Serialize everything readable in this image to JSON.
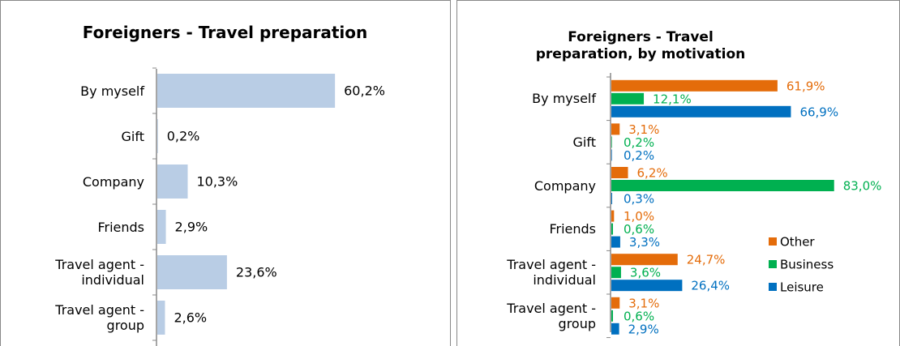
{
  "chart_data": [
    {
      "type": "bar",
      "orientation": "horizontal",
      "title": "Foreigners - Travel preparation",
      "categories": [
        "By myself",
        "Gift",
        "Company",
        "Friends",
        "Travel agent - individual",
        "Travel agent - group"
      ],
      "values": [
        60.2,
        0.2,
        10.3,
        2.9,
        23.6,
        2.6
      ],
      "value_labels": [
        "60,2%",
        "0,2%",
        "10,3%",
        "2,9%",
        "23,6%",
        "2,6%"
      ],
      "color": "#b9cde5"
    },
    {
      "type": "bar",
      "orientation": "horizontal",
      "title": "Foreigners - Travel preparation, by motivation",
      "categories": [
        "By myself",
        "Gift",
        "Company",
        "Friends",
        "Travel agent - individual",
        "Travel agent - group"
      ],
      "series": [
        {
          "name": "Other",
          "color": "#e46c0a",
          "values": [
            61.9,
            3.1,
            6.2,
            1.0,
            24.7,
            3.1
          ],
          "value_labels": [
            "61,9%",
            "3,1%",
            "6,2%",
            "1,0%",
            "24,7%",
            "3,1%"
          ]
        },
        {
          "name": "Business",
          "color": "#00b050",
          "values": [
            12.1,
            0.2,
            83.0,
            0.6,
            3.6,
            0.6
          ],
          "value_labels": [
            "12,1%",
            "0,2%",
            "83,0%",
            "0,6%",
            "3,6%",
            "0,6%"
          ]
        },
        {
          "name": "Leisure",
          "color": "#0070c0",
          "values": [
            66.9,
            0.2,
            0.3,
            3.3,
            26.4,
            2.9
          ],
          "value_labels": [
            "66,9%",
            "0,2%",
            "0,3%",
            "3,3%",
            "26,4%",
            "2,9%"
          ]
        }
      ],
      "legend": "right"
    }
  ]
}
